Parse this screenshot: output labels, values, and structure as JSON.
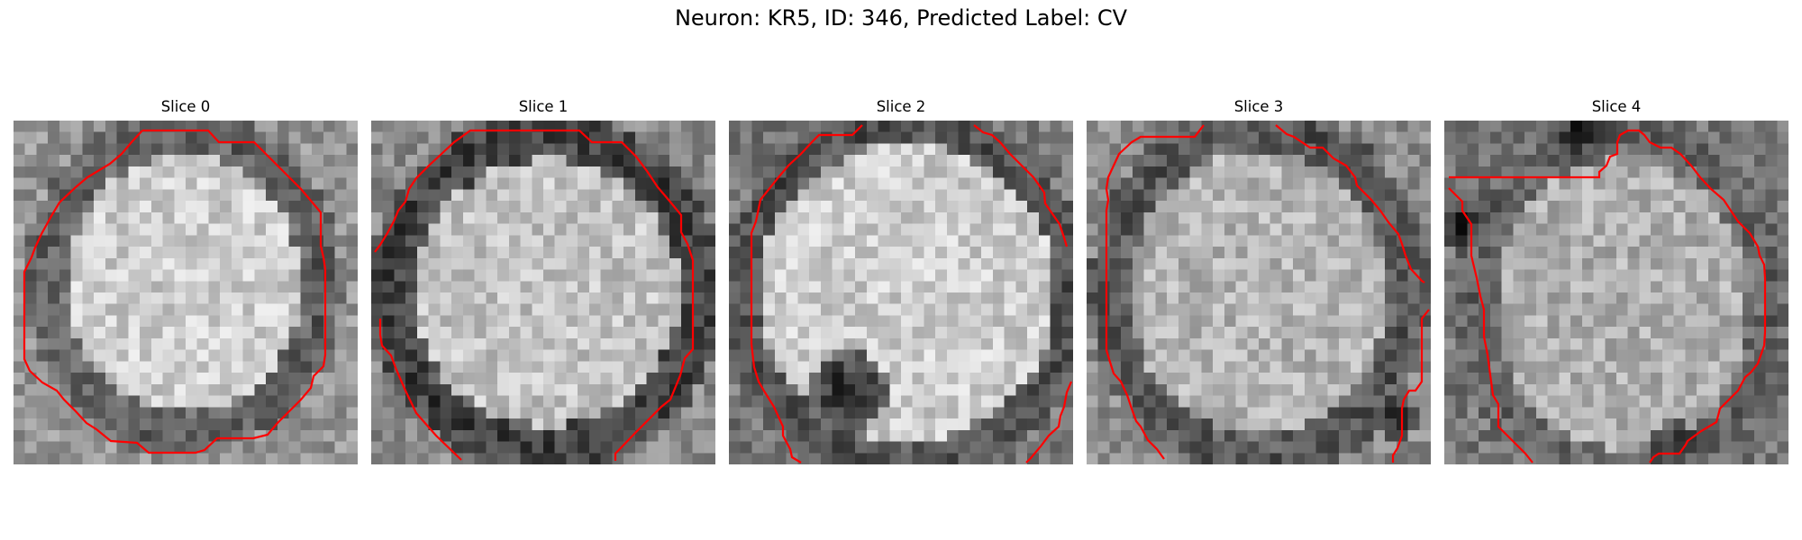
{
  "figure": {
    "title": "Neuron: KR5, ID: 346, Predicted Label: CV",
    "contour_color": "#ff0000"
  },
  "panels": [
    {
      "title": "Slice 0"
    },
    {
      "title": "Slice 1"
    },
    {
      "title": "Slice 2"
    },
    {
      "title": "Slice 3"
    },
    {
      "title": "Slice 4"
    }
  ]
}
